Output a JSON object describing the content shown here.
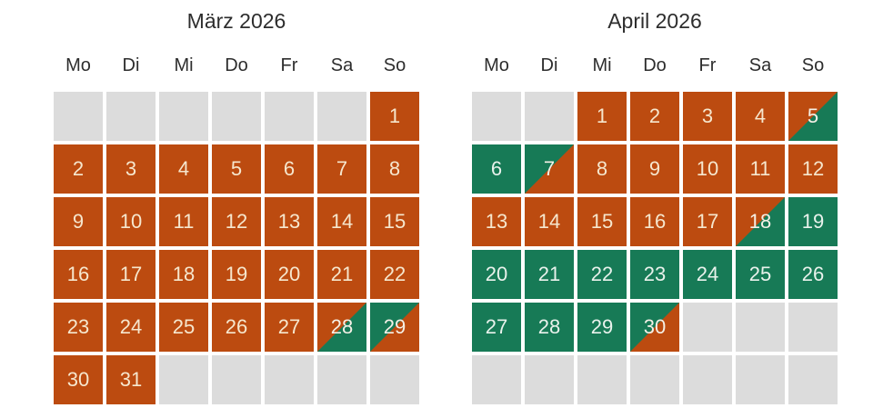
{
  "colors": {
    "booked": "#bc4b10",
    "available": "#177a56",
    "empty_cell": "#dcdcdc",
    "number_on_booked": "#f6e7ce",
    "number_on_available": "#e9f2ec",
    "number_on_split": "#f5f0e6",
    "heading_text": "#2d2d2d"
  },
  "weekday_headers": [
    "Mo",
    "Di",
    "Mi",
    "Do",
    "Fr",
    "Sa",
    "So"
  ],
  "months": [
    {
      "title": "März 2026",
      "cells": [
        {
          "day": null,
          "state": "empty"
        },
        {
          "day": null,
          "state": "empty"
        },
        {
          "day": null,
          "state": "empty"
        },
        {
          "day": null,
          "state": "empty"
        },
        {
          "day": null,
          "state": "empty"
        },
        {
          "day": null,
          "state": "empty"
        },
        {
          "day": "1",
          "state": "booked"
        },
        {
          "day": "2",
          "state": "booked"
        },
        {
          "day": "3",
          "state": "booked"
        },
        {
          "day": "4",
          "state": "booked"
        },
        {
          "day": "5",
          "state": "booked"
        },
        {
          "day": "6",
          "state": "booked"
        },
        {
          "day": "7",
          "state": "booked"
        },
        {
          "day": "8",
          "state": "booked"
        },
        {
          "day": "9",
          "state": "booked"
        },
        {
          "day": "10",
          "state": "booked"
        },
        {
          "day": "11",
          "state": "booked"
        },
        {
          "day": "12",
          "state": "booked"
        },
        {
          "day": "13",
          "state": "booked"
        },
        {
          "day": "14",
          "state": "booked"
        },
        {
          "day": "15",
          "state": "booked"
        },
        {
          "day": "16",
          "state": "booked"
        },
        {
          "day": "17",
          "state": "booked"
        },
        {
          "day": "18",
          "state": "booked"
        },
        {
          "day": "19",
          "state": "booked"
        },
        {
          "day": "20",
          "state": "booked"
        },
        {
          "day": "21",
          "state": "booked"
        },
        {
          "day": "22",
          "state": "booked"
        },
        {
          "day": "23",
          "state": "booked"
        },
        {
          "day": "24",
          "state": "booked"
        },
        {
          "day": "25",
          "state": "booked"
        },
        {
          "day": "26",
          "state": "booked"
        },
        {
          "day": "27",
          "state": "booked"
        },
        {
          "day": "28",
          "state": "booked_then_available"
        },
        {
          "day": "29",
          "state": "available_then_booked"
        },
        {
          "day": "30",
          "state": "booked"
        },
        {
          "day": "31",
          "state": "booked"
        },
        {
          "day": null,
          "state": "empty"
        },
        {
          "day": null,
          "state": "empty"
        },
        {
          "day": null,
          "state": "empty"
        },
        {
          "day": null,
          "state": "empty"
        },
        {
          "day": null,
          "state": "empty"
        }
      ]
    },
    {
      "title": "April 2026",
      "cells": [
        {
          "day": null,
          "state": "empty"
        },
        {
          "day": null,
          "state": "empty"
        },
        {
          "day": "1",
          "state": "booked"
        },
        {
          "day": "2",
          "state": "booked"
        },
        {
          "day": "3",
          "state": "booked"
        },
        {
          "day": "4",
          "state": "booked"
        },
        {
          "day": "5",
          "state": "booked_then_available"
        },
        {
          "day": "6",
          "state": "available"
        },
        {
          "day": "7",
          "state": "available_then_booked"
        },
        {
          "day": "8",
          "state": "booked"
        },
        {
          "day": "9",
          "state": "booked"
        },
        {
          "day": "10",
          "state": "booked"
        },
        {
          "day": "11",
          "state": "booked"
        },
        {
          "day": "12",
          "state": "booked"
        },
        {
          "day": "13",
          "state": "booked"
        },
        {
          "day": "14",
          "state": "booked"
        },
        {
          "day": "15",
          "state": "booked"
        },
        {
          "day": "16",
          "state": "booked"
        },
        {
          "day": "17",
          "state": "booked"
        },
        {
          "day": "18",
          "state": "booked_then_available"
        },
        {
          "day": "19",
          "state": "available"
        },
        {
          "day": "20",
          "state": "available"
        },
        {
          "day": "21",
          "state": "available"
        },
        {
          "day": "22",
          "state": "available"
        },
        {
          "day": "23",
          "state": "available"
        },
        {
          "day": "24",
          "state": "available"
        },
        {
          "day": "25",
          "state": "available"
        },
        {
          "day": "26",
          "state": "available"
        },
        {
          "day": "27",
          "state": "available"
        },
        {
          "day": "28",
          "state": "available"
        },
        {
          "day": "29",
          "state": "available"
        },
        {
          "day": "30",
          "state": "available_then_booked"
        },
        {
          "day": null,
          "state": "empty"
        },
        {
          "day": null,
          "state": "empty"
        },
        {
          "day": null,
          "state": "empty"
        },
        {
          "day": null,
          "state": "empty"
        },
        {
          "day": null,
          "state": "empty"
        },
        {
          "day": null,
          "state": "empty"
        },
        {
          "day": null,
          "state": "empty"
        },
        {
          "day": null,
          "state": "empty"
        },
        {
          "day": null,
          "state": "empty"
        },
        {
          "day": null,
          "state": "empty"
        }
      ]
    }
  ]
}
